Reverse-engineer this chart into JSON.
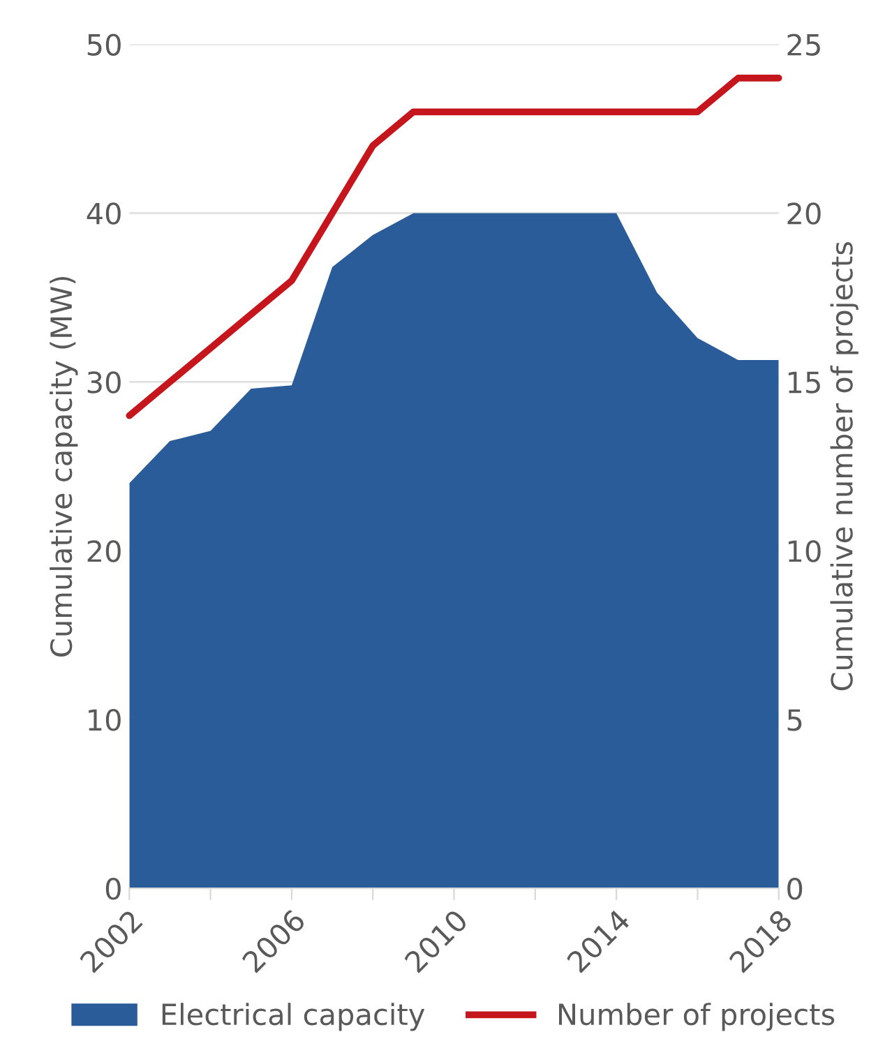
{
  "chart_data": {
    "type": "area",
    "ylabel": "Cumulative capacity (MW)",
    "y2label": "Cumulative number of projects",
    "x": [
      2002,
      2003,
      2004,
      2005,
      2006,
      2007,
      2008,
      2009,
      2010,
      2011,
      2012,
      2013,
      2014,
      2015,
      2016,
      2017,
      2018
    ],
    "series": [
      {
        "name": "Electrical capacity",
        "color": "#2a5c9a",
        "values": [
          24,
          26.5,
          27.1,
          29.6,
          29.8,
          36.8,
          38.7,
          40,
          40,
          40,
          40,
          40,
          40,
          35.3,
          32.6,
          31.3,
          31.3
        ]
      },
      {
        "name": "Number of projects",
        "type": "line",
        "axis": "y2",
        "color": "#c4161c",
        "values": [
          14,
          15,
          16,
          17,
          18,
          20,
          22,
          23,
          23,
          23,
          23,
          23,
          23,
          23,
          23,
          24,
          24
        ]
      }
    ],
    "xlim": [
      2002,
      2018
    ],
    "xticks": [
      2002,
      {
        "value": 2004,
        "label": null
      },
      2006,
      {
        "value": 2008,
        "label": null
      },
      2010,
      {
        "value": 2012,
        "label": null
      },
      2014,
      {
        "value": 2016,
        "label": null
      },
      2018
    ],
    "ylim": [
      0,
      50
    ],
    "yticks": [
      0,
      10,
      20,
      30,
      40,
      50
    ],
    "y2lim": [
      0,
      25
    ],
    "y2ticks": [
      0,
      5,
      10,
      15,
      20,
      25
    ],
    "grid": "y",
    "legend": "bottom",
    "marker": "none",
    "line_style": "solid"
  }
}
